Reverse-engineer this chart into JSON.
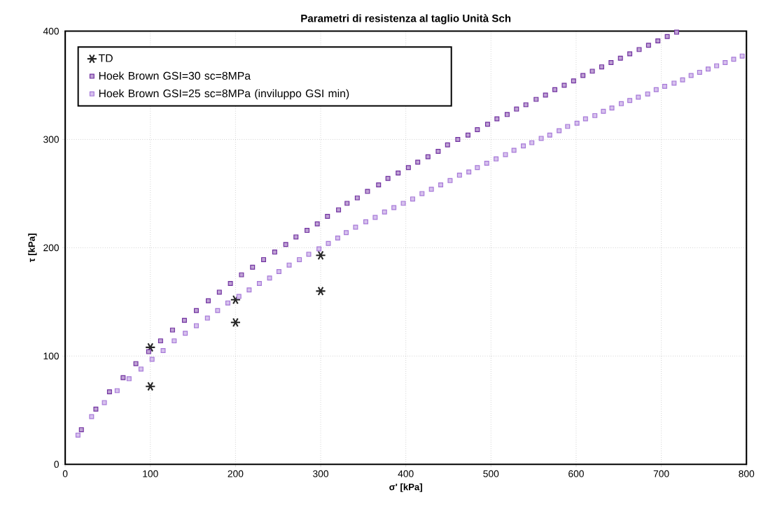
{
  "chart_data": {
    "type": "scatter",
    "title": "Parametri di resistenza al taglio Unità Sch",
    "xlabel": "σ' [kPa]",
    "ylabel": "τ [kPa]",
    "xlim": [
      0,
      800
    ],
    "ylim": [
      0,
      400
    ],
    "xticks": [
      0,
      100,
      200,
      300,
      400,
      500,
      600,
      700,
      800
    ],
    "yticks": [
      0,
      100,
      200,
      300,
      400
    ],
    "grid": true,
    "legend": "top left",
    "series": [
      {
        "name": "TD",
        "color": "#262626",
        "marker": "cross",
        "x": [
          100,
          100,
          200,
          200,
          300,
          300
        ],
        "values": [
          108,
          72,
          152,
          131,
          193,
          160
        ]
      },
      {
        "name": "Hoek Brown  GSI=30 sc=8MPa",
        "color": "#7030a0",
        "marker": "square",
        "x": [
          19,
          36,
          52,
          68,
          83,
          98,
          112,
          126,
          140,
          154,
          168,
          181,
          194,
          207,
          220,
          233,
          246,
          259,
          271,
          284,
          296,
          308,
          321,
          331,
          343,
          355,
          368,
          379,
          391,
          403,
          414,
          426,
          438,
          449,
          461,
          473,
          484,
          496,
          507,
          519,
          530,
          541,
          553,
          564,
          575,
          586,
          597,
          608,
          619,
          630,
          641,
          652,
          663,
          674,
          685,
          696,
          707,
          718
        ],
        "values": [
          32,
          51,
          67,
          80,
          93,
          104,
          114,
          124,
          133,
          142,
          151,
          159,
          167,
          175,
          182,
          189,
          196,
          203,
          210,
          216,
          222,
          229,
          235,
          241,
          246,
          252,
          258,
          264,
          269,
          274,
          279,
          284,
          289,
          295,
          300,
          304,
          309,
          314,
          319,
          323,
          328,
          332,
          337,
          341,
          346,
          350,
          354,
          359,
          363,
          367,
          371,
          375,
          379,
          383,
          387,
          391,
          395,
          399
        ]
      },
      {
        "name": "Hoek Brown  GSI=25 sc=8MPa (inviluppo GSI min)",
        "color": "#a678d8",
        "marker": "square",
        "x": [
          15,
          31,
          46,
          61,
          75,
          89,
          102,
          115,
          128,
          141,
          154,
          167,
          179,
          191,
          204,
          216,
          228,
          240,
          251,
          263,
          275,
          286,
          298,
          309,
          320,
          330,
          341,
          353,
          364,
          375,
          386,
          397,
          408,
          419,
          430,
          441,
          452,
          463,
          474,
          484,
          495,
          506,
          517,
          527,
          538,
          548,
          559,
          569,
          580,
          590,
          601,
          611,
          622,
          632,
          642,
          653,
          663,
          673,
          684,
          694,
          704,
          715,
          725,
          735,
          745,
          755,
          765,
          775,
          785,
          795
        ],
        "values": [
          27,
          44,
          57,
          68,
          79,
          88,
          97,
          105,
          114,
          121,
          128,
          135,
          142,
          149,
          155,
          161,
          167,
          172,
          178,
          184,
          189,
          194,
          199,
          204,
          209,
          214,
          219,
          224,
          228,
          233,
          237,
          241,
          245,
          250,
          254,
          258,
          262,
          267,
          270,
          274,
          278,
          282,
          286,
          290,
          294,
          297,
          301,
          304,
          308,
          312,
          315,
          319,
          322,
          326,
          329,
          333,
          336,
          339,
          342,
          346,
          349,
          352,
          355,
          359,
          362,
          365,
          368,
          371,
          374,
          377
        ]
      }
    ]
  }
}
